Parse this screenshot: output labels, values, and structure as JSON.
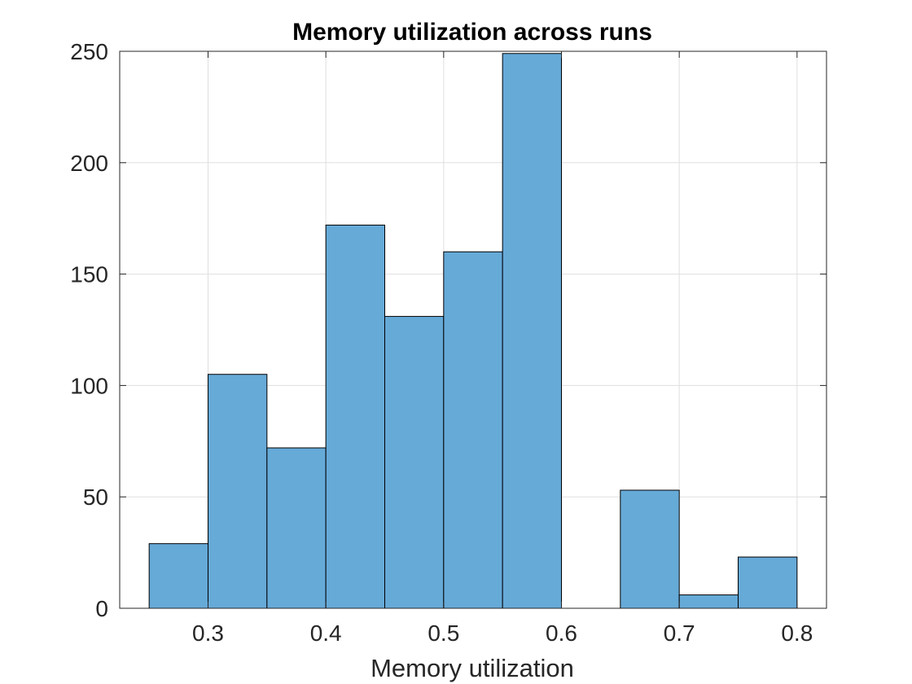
{
  "chart_data": {
    "type": "bar",
    "histogram": true,
    "title": "Memory utilization across runs",
    "xlabel": "Memory utilization",
    "ylabel": "",
    "xlim": [
      0.225,
      0.825
    ],
    "ylim": [
      0,
      250
    ],
    "xticks": [
      0.3,
      0.4,
      0.5,
      0.6,
      0.7,
      0.8
    ],
    "xtick_labels": [
      "0.3",
      "0.4",
      "0.5",
      "0.6",
      "0.7",
      "0.8"
    ],
    "yticks": [
      0,
      50,
      100,
      150,
      200,
      250
    ],
    "ytick_labels": [
      "0",
      "50",
      "100",
      "150",
      "200",
      "250"
    ],
    "grid": true,
    "bar_color": "#66aad8",
    "edge_color": "#000000",
    "bins": [
      {
        "x0": 0.25,
        "x1": 0.3,
        "count": 29
      },
      {
        "x0": 0.3,
        "x1": 0.35,
        "count": 105
      },
      {
        "x0": 0.35,
        "x1": 0.4,
        "count": 72
      },
      {
        "x0": 0.4,
        "x1": 0.45,
        "count": 172
      },
      {
        "x0": 0.45,
        "x1": 0.5,
        "count": 131
      },
      {
        "x0": 0.5,
        "x1": 0.55,
        "count": 160
      },
      {
        "x0": 0.55,
        "x1": 0.6,
        "count": 249
      },
      {
        "x0": 0.6,
        "x1": 0.65,
        "count": 0
      },
      {
        "x0": 0.65,
        "x1": 0.7,
        "count": 53
      },
      {
        "x0": 0.7,
        "x1": 0.75,
        "count": 6
      },
      {
        "x0": 0.75,
        "x1": 0.8,
        "count": 23
      }
    ]
  }
}
